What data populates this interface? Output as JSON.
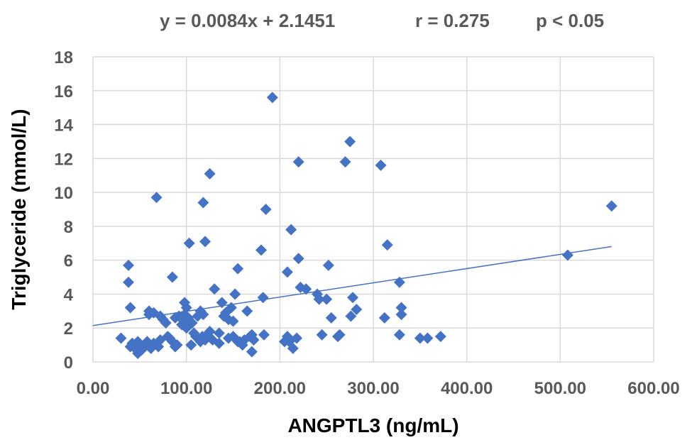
{
  "chart_data": {
    "type": "scatter",
    "title": "",
    "annotations": {
      "equation": "y = 0.0084x + 2.1451",
      "r": "r = 0.275",
      "p": "p < 0.05"
    },
    "xlabel": "ANGPTL3 (ng/mL)",
    "ylabel": "Triglyceride (mmol/L)",
    "xlim": [
      0,
      600
    ],
    "ylim": [
      0,
      18
    ],
    "xticks": [
      0,
      100,
      200,
      300,
      400,
      500,
      600
    ],
    "yticks": [
      0,
      2,
      4,
      6,
      8,
      10,
      12,
      14,
      16,
      18
    ],
    "xtick_labels": [
      "0.00",
      "100.00",
      "200.00",
      "300.00",
      "400.00",
      "500.00",
      "600.00"
    ],
    "ytick_labels": [
      "0",
      "2",
      "4",
      "6",
      "8",
      "10",
      "12",
      "14",
      "16",
      "18"
    ],
    "grid": true,
    "legend": "none",
    "marker": "diamond",
    "marker_color": "#4472c4",
    "trendline": {
      "slope": 0.0084,
      "intercept": 2.1451,
      "x_range": [
        0,
        555
      ],
      "color": "#4472c4"
    },
    "series": [
      {
        "x": [
          30,
          38,
          38,
          40,
          40,
          42,
          45,
          46,
          48,
          48,
          50,
          52,
          55,
          58,
          60,
          60,
          62,
          65,
          65,
          68,
          70,
          72,
          72,
          75,
          78,
          80,
          82,
          85,
          85,
          88,
          88,
          90,
          92,
          95,
          98,
          98,
          100,
          100,
          100,
          102,
          103,
          105,
          106,
          108,
          110,
          112,
          115,
          115,
          117,
          118,
          118,
          120,
          120,
          122,
          122,
          125,
          125,
          128,
          130,
          135,
          135,
          138,
          140,
          142,
          145,
          145,
          148,
          150,
          150,
          152,
          155,
          155,
          157,
          160,
          162,
          165,
          168,
          170,
          170,
          172,
          180,
          182,
          183,
          185,
          192,
          205,
          208,
          208,
          210,
          212,
          214,
          218,
          220,
          220,
          222,
          228,
          240,
          242,
          245,
          250,
          252,
          255,
          262,
          264,
          270,
          275,
          276,
          278,
          282,
          308,
          312,
          315,
          328,
          328,
          330,
          330,
          350,
          358,
          372,
          508,
          555
        ],
        "y": [
          1.4,
          5.7,
          4.7,
          3.2,
          0.9,
          1.1,
          0.8,
          1.0,
          1.2,
          0.5,
          0.9,
          0.7,
          1.0,
          1.2,
          3.0,
          2.8,
          0.8,
          2.9,
          1.1,
          9.7,
          0.9,
          2.7,
          1.3,
          2.5,
          2.3,
          1.5,
          1.4,
          5.0,
          1.2,
          0.9,
          2.6,
          1.0,
          2.7,
          2.2,
          3.5,
          2.8,
          3.2,
          2.5,
          2.0,
          2.6,
          7.0,
          1.0,
          2.3,
          1.7,
          1.5,
          2.7,
          1.2,
          3.0,
          1.5,
          9.4,
          2.8,
          7.1,
          1.3,
          1.6,
          1.5,
          11.1,
          1.8,
          1.3,
          4.3,
          1.7,
          1.1,
          3.5,
          2.7,
          2.9,
          1.4,
          2.5,
          3.2,
          1.5,
          2.4,
          4.0,
          1.2,
          5.5,
          1.2,
          1.0,
          1.3,
          3.0,
          1.5,
          0.6,
          1.6,
          1.3,
          6.6,
          3.8,
          1.6,
          9.0,
          15.6,
          1.2,
          1.5,
          5.3,
          1.2,
          7.8,
          0.8,
          1.4,
          6.1,
          11.8,
          4.4,
          4.3,
          4.0,
          3.7,
          1.6,
          3.7,
          5.7,
          2.6,
          1.5,
          1.6,
          11.8,
          13.0,
          2.7,
          3.8,
          3.1,
          11.6,
          2.6,
          6.9,
          4.7,
          1.6,
          3.2,
          2.8,
          1.4,
          1.4,
          1.5,
          6.3,
          9.2
        ]
      }
    ]
  }
}
